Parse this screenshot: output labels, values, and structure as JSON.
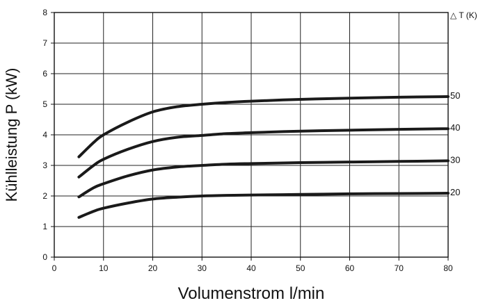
{
  "chart_data": {
    "type": "line",
    "xlabel": "Volumenstrom l/min",
    "ylabel": "Kühlleistung P (kW)",
    "legend_title": "△ T (K)",
    "legend_placement": "right",
    "grid": true,
    "xlim": [
      0,
      80
    ],
    "ylim": [
      0,
      8
    ],
    "x_ticks": [
      "0",
      "10",
      "20",
      "30",
      "40",
      "50",
      "60",
      "70",
      "80"
    ],
    "y_ticks": [
      "0",
      "1",
      "2",
      "3",
      "4",
      "5",
      "6",
      "7",
      "8"
    ],
    "series": [
      {
        "name": "50",
        "x": [
          5,
          8,
          10,
          15,
          20,
          25,
          30,
          35,
          40,
          50,
          60,
          70,
          80
        ],
        "y": [
          3.28,
          3.75,
          4.0,
          4.42,
          4.75,
          4.92,
          5.0,
          5.06,
          5.1,
          5.16,
          5.2,
          5.23,
          5.25
        ]
      },
      {
        "name": "40",
        "x": [
          5,
          8,
          10,
          15,
          20,
          25,
          30,
          35,
          40,
          50,
          60,
          70,
          80
        ],
        "y": [
          2.62,
          3.0,
          3.2,
          3.53,
          3.78,
          3.92,
          3.98,
          4.04,
          4.07,
          4.12,
          4.15,
          4.18,
          4.2
        ]
      },
      {
        "name": "30",
        "x": [
          5,
          8,
          10,
          15,
          20,
          25,
          30,
          35,
          40,
          50,
          60,
          70,
          80
        ],
        "y": [
          1.97,
          2.27,
          2.4,
          2.66,
          2.85,
          2.95,
          3.0,
          3.04,
          3.06,
          3.09,
          3.11,
          3.13,
          3.15
        ]
      },
      {
        "name": "20",
        "x": [
          5,
          8,
          10,
          15,
          20,
          25,
          30,
          35,
          40,
          50,
          60,
          70,
          80
        ],
        "y": [
          1.3,
          1.5,
          1.6,
          1.77,
          1.9,
          1.96,
          2.0,
          2.02,
          2.03,
          2.05,
          2.07,
          2.08,
          2.09
        ]
      }
    ]
  }
}
